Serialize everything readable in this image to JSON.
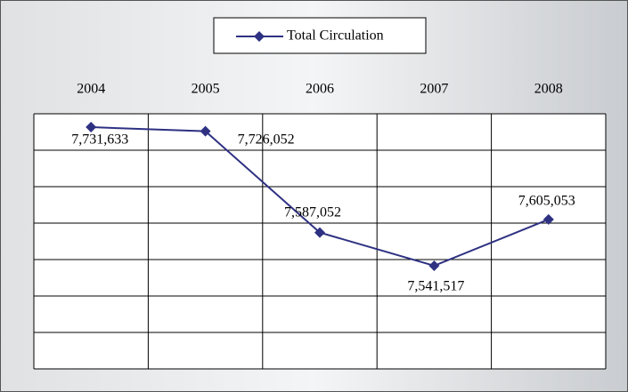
{
  "chart_data": {
    "type": "line",
    "categories": [
      "2004",
      "2005",
      "2006",
      "2007",
      "2008"
    ],
    "series": [
      {
        "name": "Total Circulation",
        "color": "#2e3182",
        "values": [
          7731633,
          7726052,
          7587052,
          7541517,
          7605053
        ],
        "value_labels": [
          "7,731,633",
          "7,726,052",
          "7,587,052",
          "7,541,517",
          "7,605,053"
        ]
      }
    ],
    "ylim": [
      7400000,
      7750000
    ],
    "yticks": [
      7400000,
      7450000,
      7500000,
      7550000,
      7600000,
      7650000,
      7700000,
      7750000
    ],
    "grid": true,
    "legend": "top"
  }
}
